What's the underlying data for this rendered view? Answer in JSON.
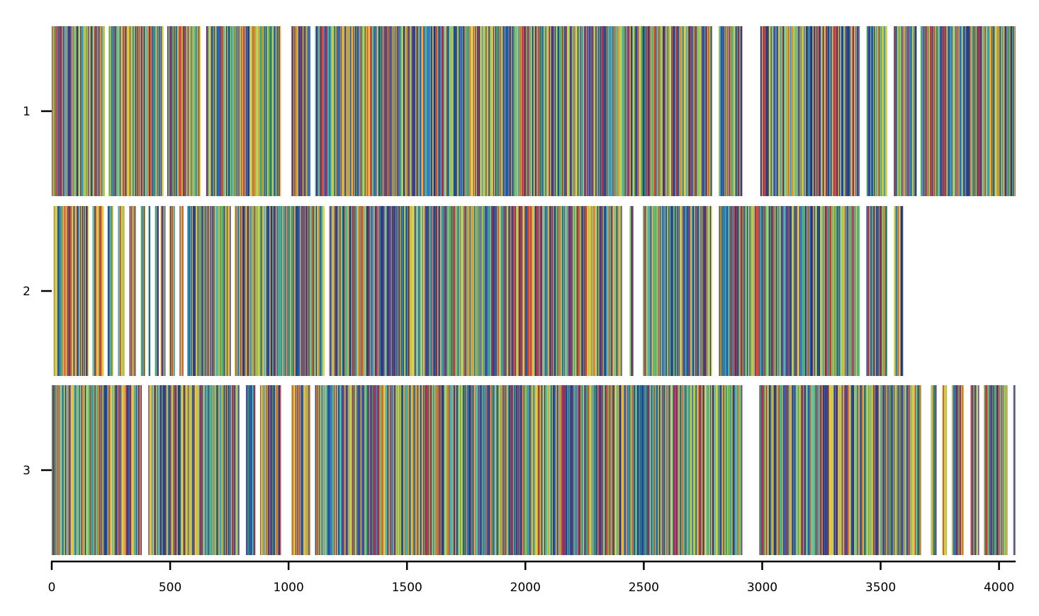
{
  "chart_data": {
    "type": "heatmap",
    "title": "",
    "xlabel": "",
    "ylabel": "",
    "xlim": [
      0,
      4070
    ],
    "x_ticks": [
      0,
      500,
      1000,
      1500,
      2000,
      2500,
      3000,
      3500,
      4000
    ],
    "x_tick_labels": [
      "0",
      "500",
      "1000",
      "1500",
      "2000",
      "2500",
      "3000",
      "3500",
      "4000"
    ],
    "rows": [
      {
        "label": "1",
        "extent": [
          0,
          4070
        ],
        "gaps": [
          [
            224,
            240
          ],
          [
            470,
            485
          ],
          [
            625,
            650
          ],
          [
            965,
            1010
          ],
          [
            1090,
            1110
          ],
          [
            2785,
            2815
          ],
          [
            2915,
            2990
          ],
          [
            3410,
            3440
          ],
          [
            3525,
            3555
          ],
          [
            3650,
            3665
          ]
        ]
      },
      {
        "label": "2",
        "extent": [
          0,
          3595
        ],
        "gaps": [
          [
            0,
            8
          ],
          [
            155,
            170
          ],
          [
            220,
            235
          ],
          [
            260,
            280
          ],
          [
            305,
            325
          ],
          [
            355,
            375
          ],
          [
            395,
            405
          ],
          [
            415,
            435
          ],
          [
            450,
            460
          ],
          [
            480,
            495
          ],
          [
            520,
            540
          ],
          [
            555,
            570
          ],
          [
            755,
            770
          ],
          [
            1150,
            1170
          ],
          [
            2405,
            2440
          ],
          [
            2455,
            2495
          ],
          [
            2785,
            2815
          ],
          [
            3410,
            3440
          ],
          [
            3525,
            3555
          ]
        ]
      },
      {
        "label": "3",
        "extent": [
          0,
          4070
        ],
        "gaps": [
          [
            380,
            405
          ],
          [
            790,
            820
          ],
          [
            860,
            880
          ],
          [
            965,
            1010
          ],
          [
            1090,
            1110
          ],
          [
            2915,
            2985
          ],
          [
            3670,
            3710
          ],
          [
            3735,
            3760
          ],
          [
            3780,
            3800
          ],
          [
            3850,
            3880
          ],
          [
            3915,
            3935
          ],
          [
            4035,
            4060
          ]
        ]
      }
    ],
    "colors": [
      "#0c3a86",
      "#1a5aa8",
      "#2f8fbf",
      "#4ab5a0",
      "#6ec26e",
      "#a6c24a",
      "#d7cf3c",
      "#e6c032",
      "#d88a2a",
      "#c8402e",
      "#a3284a",
      "#5a2f7e",
      "#2a2e72",
      "#3c9f5a"
    ],
    "grid": false,
    "legend": "none"
  }
}
